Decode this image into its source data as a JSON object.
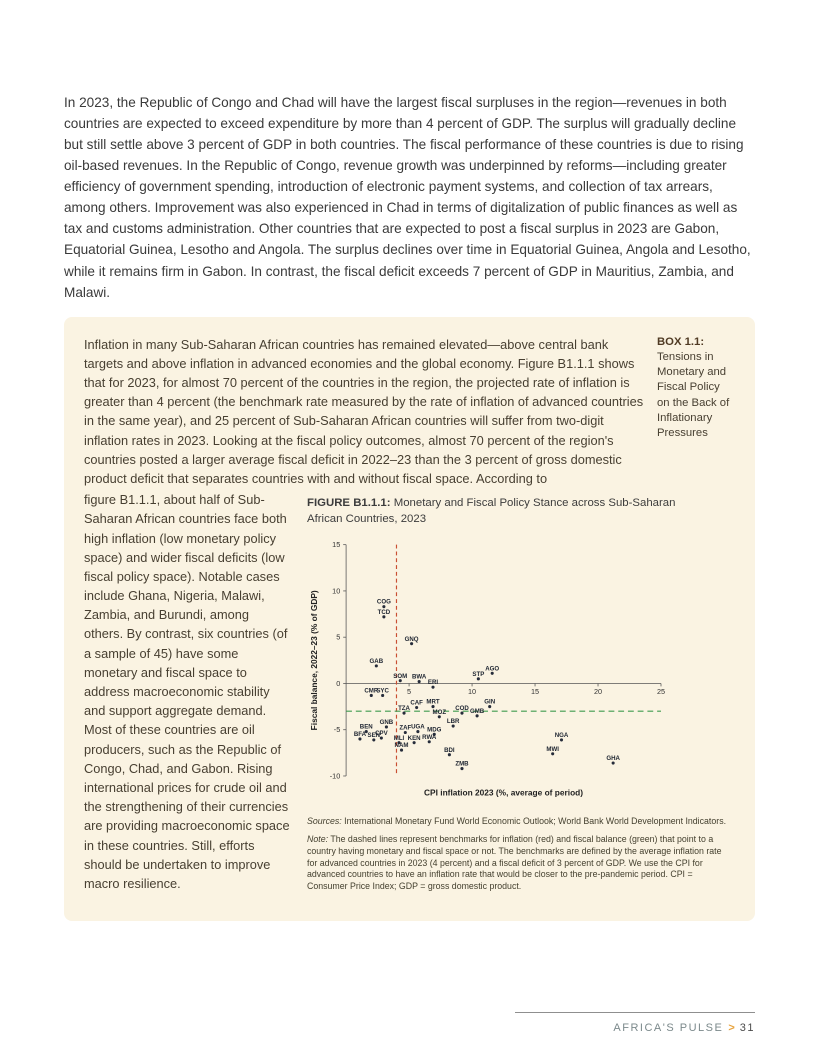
{
  "colors": {
    "box_background": "#faf3e2",
    "footer_brand": "#7b898b",
    "footer_arrow": "#e8a33d",
    "benchmark_inflation_red": "#c94f33",
    "benchmark_fiscal_green": "#3f9b4f"
  },
  "page": {
    "intro": "In 2023, the Republic of Congo and Chad will have the largest fiscal surpluses in the region—revenues in both countries are expected to exceed expenditure by more than 4 percent of GDP. The surplus will gradually decline but still settle above 3 percent of GDP in both countries. The fiscal performance of these countries is due to rising oil-based revenues. In the Republic of Congo, revenue growth was underpinned by reforms—including greater efficiency of government spending, introduction of electronic payment systems, and collection of tax arrears, among others. Improvement was also experienced in Chad in terms of digitalization of public finances as well as tax and customs administration. Other countries that are expected to post a fiscal surplus in 2023 are Gabon, Equatorial Guinea, Lesotho and Angola. The surplus declines over time in Equatorial Guinea, Angola and Lesotho, while it remains firm in Gabon. In contrast, the fiscal deficit exceeds 7 percent of GDP in Mauritius, Zambia, and Malawi.",
    "footer": {
      "brand": "AFRICA'S PULSE",
      "separator": ">",
      "page_number": "31"
    }
  },
  "box": {
    "label": "BOX 1.1:",
    "sidebar_title": "Tensions in Monetary and Fiscal Policy on the Back of Inflationary Pressures",
    "text_part1": "Inflation in many Sub-Saharan African countries has remained elevated—above central bank targets and above inflation in advanced economies and the global economy. Figure B1.1.1 shows that for 2023, for almost 70 percent of the countries in the region, the projected rate of inflation is greater than 4 percent (the benchmark rate measured by the rate of inflation of advanced countries in the same year), and 25 percent of Sub-Saharan African countries will suffer from two-digit inflation rates in 2023. Looking at the fiscal policy outcomes, almost 70 percent of the region's countries posted a larger average fiscal deficit in 2022–23 than the 3 percent of gross domestic product deficit that separates countries with and without fiscal space. According to",
    "text_part2": "figure B1.1.1, about half of Sub-Saharan African countries face both high inflation (low monetary policy space) and wider fiscal deficits (low fiscal policy space). Notable cases include Ghana, Nigeria, Malawi, Zambia, and Burundi, among others. By contrast, six countries (of a sample of 45) have some monetary and fiscal space to address macroeconomic stability and support aggregate demand. Most of these countries are oil producers, such as the Republic of Congo, Chad, and Gabon. Rising international prices for crude oil and the strengthening of their currencies are providing macroeconomic space in these countries. Still, efforts should be undertaken to improve macro resilience."
  },
  "figure": {
    "title_label": "FIGURE B1.1.1:",
    "title_text": "Monetary and Fiscal Policy Stance across Sub-Saharan African Countries, 2023",
    "sources_label": "Sources:",
    "sources_text": "International Monetary Fund World Economic Outlook; World Bank World Development Indicators.",
    "note_label": "Note:",
    "note_text": "The dashed lines represent benchmarks for inflation (red) and fiscal balance (green) that point to a country having monetary and fiscal space or not. The benchmarks are defined by the average inflation rate for advanced countries in 2023 (4 percent) and a fiscal deficit of 3 percent of GDP. We use the CPI for advanced countries to have an inflation rate that would be closer to the pre-pandemic period. CPI = Consumer Price Index; GDP = gross domestic product."
  },
  "chart_data": {
    "type": "scatter",
    "title": "Monetary and Fiscal Policy Stance across Sub-Saharan African Countries, 2023",
    "xlabel": "CPI inflation 2023 (%, average of period)",
    "ylabel": "Fiscal balance, 2022–23 (% of GDP)",
    "xlim": [
      0,
      25
    ],
    "ylim": [
      -10,
      15
    ],
    "xticks": [
      5,
      10,
      15,
      20,
      25
    ],
    "yticks": [
      15,
      10,
      5,
      0,
      -5,
      -10
    ],
    "grid": false,
    "legend": "none",
    "benchmark_inflation_x": 4,
    "benchmark_fiscal_y": -3,
    "benchmark_inflation_color": "#c94f33",
    "benchmark_fiscal_color": "#3f9b4f",
    "points": [
      {
        "label": "COG",
        "x": 3.0,
        "y": 8.3
      },
      {
        "label": "TCD",
        "x": 3.0,
        "y": 7.2
      },
      {
        "label": "GNQ",
        "x": 5.2,
        "y": 4.3
      },
      {
        "label": "GAB",
        "x": 2.4,
        "y": 1.9
      },
      {
        "label": "SOM",
        "x": 4.3,
        "y": 0.3
      },
      {
        "label": "BWA",
        "x": 5.8,
        "y": 0.2
      },
      {
        "label": "ERI",
        "x": 6.9,
        "y": -0.4
      },
      {
        "label": "STP",
        "x": 10.5,
        "y": 0.5
      },
      {
        "label": "AGO",
        "x": 11.6,
        "y": 1.1
      },
      {
        "label": "CMR",
        "x": 2.0,
        "y": -1.3
      },
      {
        "label": "SYC",
        "x": 2.9,
        "y": -1.3
      },
      {
        "label": "TZA",
        "x": 4.6,
        "y": -3.2
      },
      {
        "label": "CAF",
        "x": 5.6,
        "y": -2.6
      },
      {
        "label": "MRT",
        "x": 6.9,
        "y": -2.5
      },
      {
        "label": "MOZ",
        "x": 7.4,
        "y": -3.6
      },
      {
        "label": "COD",
        "x": 9.2,
        "y": -3.2
      },
      {
        "label": "GMB",
        "x": 10.4,
        "y": -3.5
      },
      {
        "label": "GIN",
        "x": 11.4,
        "y": -2.5
      },
      {
        "label": "LBR",
        "x": 8.5,
        "y": -4.6
      },
      {
        "label": "BEN",
        "x": 1.6,
        "y": -5.2
      },
      {
        "label": "GNB",
        "x": 3.2,
        "y": -4.7
      },
      {
        "label": "ZAF",
        "x": 4.7,
        "y": -5.3
      },
      {
        "label": "UGA",
        "x": 5.7,
        "y": -5.2
      },
      {
        "label": "MDG",
        "x": 7.0,
        "y": -5.5
      },
      {
        "label": "BFA",
        "x": 1.1,
        "y": -6.0
      },
      {
        "label": "SEN",
        "x": 2.2,
        "y": -6.1
      },
      {
        "label": "CPV",
        "x": 2.8,
        "y": -5.9
      },
      {
        "label": "MLI",
        "x": 4.2,
        "y": -6.4
      },
      {
        "label": "KEN",
        "x": 5.4,
        "y": -6.4
      },
      {
        "label": "RWA",
        "x": 6.6,
        "y": -6.3
      },
      {
        "label": "NAM",
        "x": 4.4,
        "y": -7.2
      },
      {
        "label": "BDI",
        "x": 8.2,
        "y": -7.7
      },
      {
        "label": "NGA",
        "x": 17.1,
        "y": -6.1
      },
      {
        "label": "MWI",
        "x": 16.4,
        "y": -7.6
      },
      {
        "label": "ZMB",
        "x": 9.2,
        "y": -9.2
      },
      {
        "label": "GHA",
        "x": 21.2,
        "y": -8.6
      }
    ]
  }
}
